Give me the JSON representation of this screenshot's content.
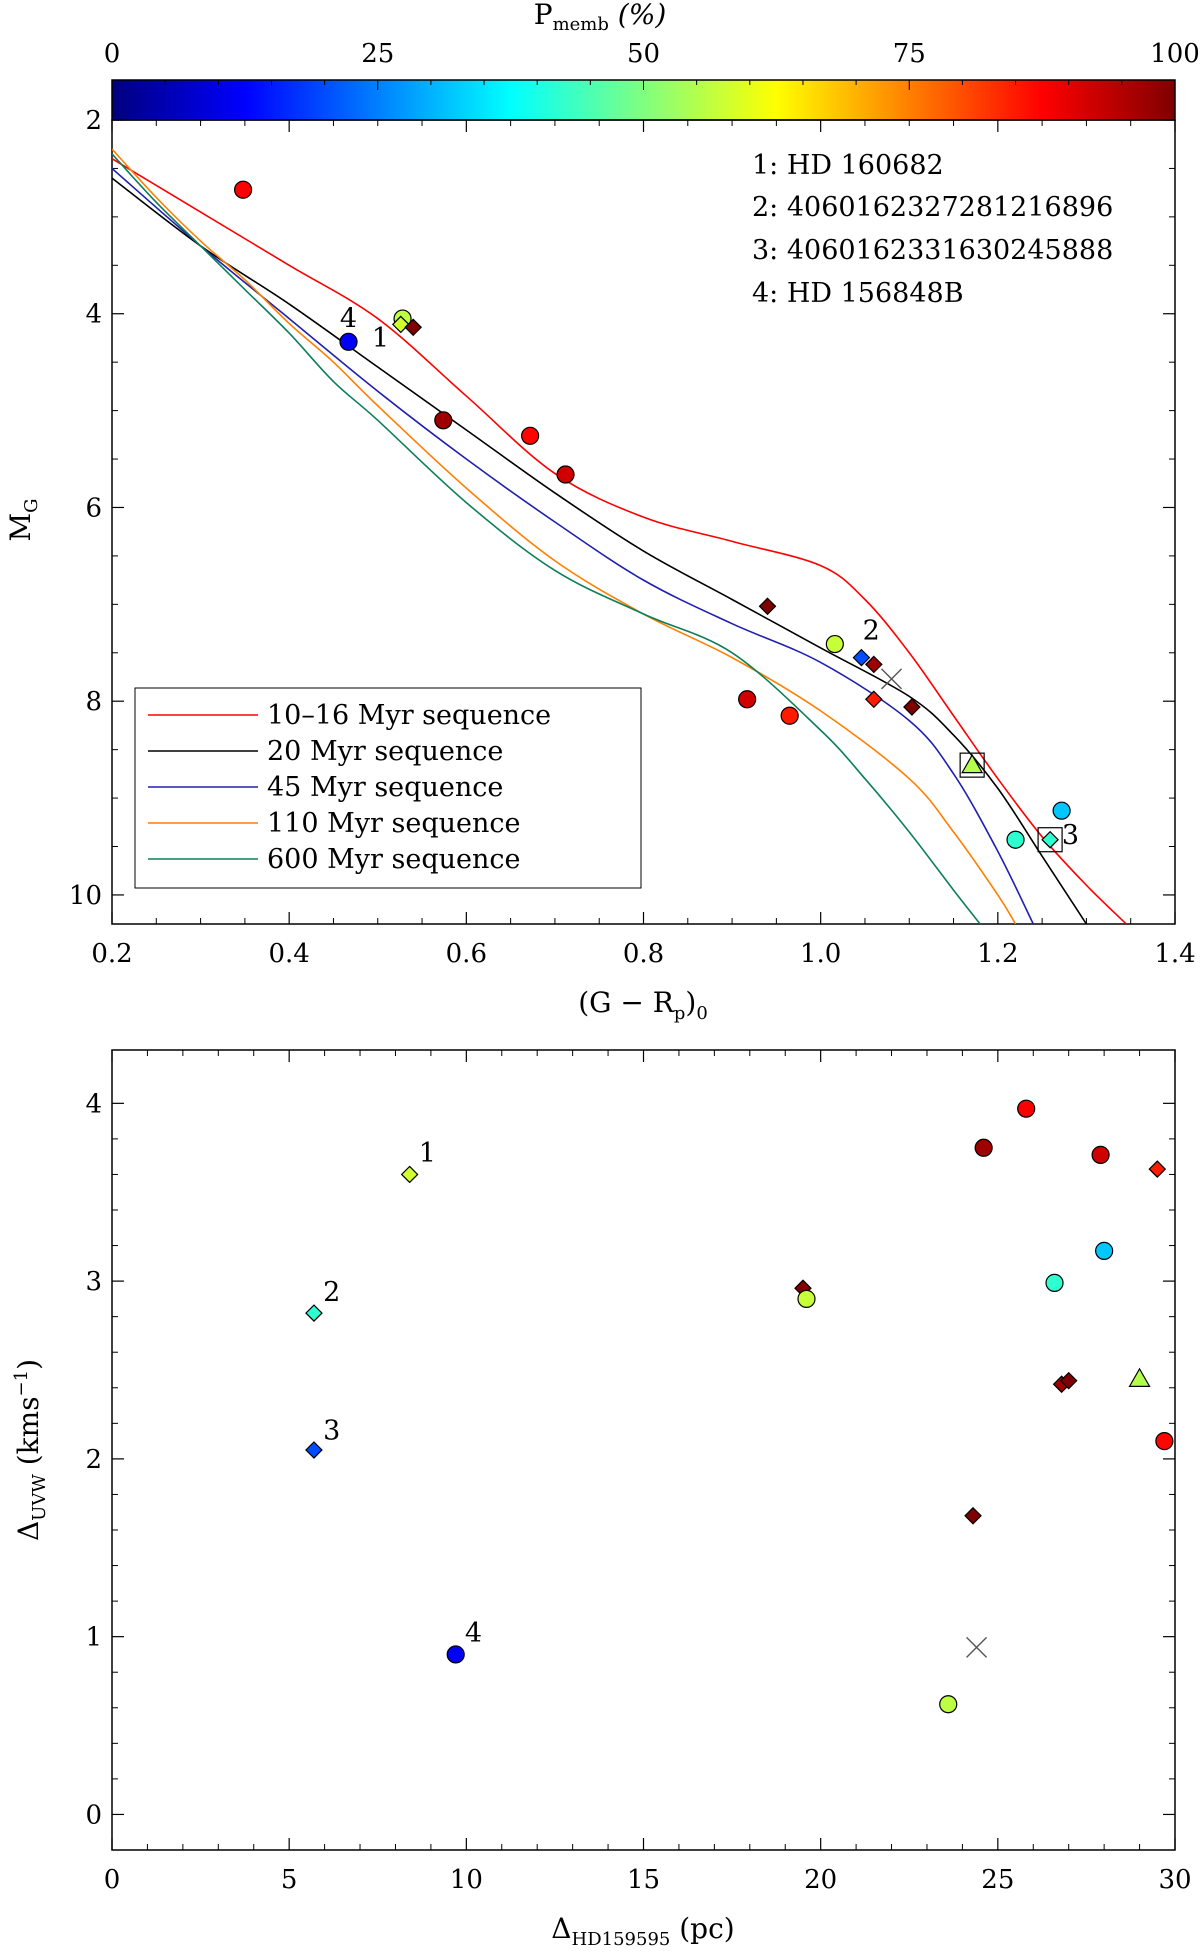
{
  "colorbar": {
    "label": "P",
    "label_sub": "memb",
    "label_unit": " (%)",
    "ticks": [
      "0",
      "25",
      "50",
      "75",
      "100"
    ],
    "range": [
      0,
      100
    ]
  },
  "chart_data": [
    {
      "type": "scatter",
      "name": "color-magnitude diagram",
      "xlabel_main": "(G − R",
      "xlabel_sub1": "p",
      "xlabel_close": ")",
      "xlabel_sub2": "0",
      "ylabel_main": "M",
      "ylabel_sub": "G",
      "xlim": [
        0.2,
        1.4
      ],
      "ylim": [
        10.3,
        2.0
      ],
      "y_inverted": true,
      "xticks": [
        "0.2",
        "0.4",
        "0.6",
        "0.8",
        "1.0",
        "1.2",
        "1.4"
      ],
      "yticks": [
        "2",
        "4",
        "6",
        "8",
        "10"
      ],
      "star_ids": [
        "1: HD 160682",
        "2: 4060162327281216896",
        "3: 4060162331630245888",
        "4: HD 156848B"
      ],
      "legend": {
        "placement": "lower-left",
        "entries": [
          {
            "label": "10–16 Myr sequence",
            "color": "#ff0000"
          },
          {
            "label": "20 Myr sequence",
            "color": "#000000"
          },
          {
            "label": "45 Myr sequence",
            "color": "#2020b0"
          },
          {
            "label": "110 Myr sequence",
            "color": "#ff7f00"
          },
          {
            "label": "600 Myr sequence",
            "color": "#0d7f5a"
          }
        ]
      },
      "sequences": [
        {
          "name": "10–16 Myr sequence",
          "color": "#ff0000",
          "x": [
            0.2,
            0.3,
            0.4,
            0.5,
            0.6,
            0.7,
            0.8,
            0.9,
            1.0,
            1.05,
            1.1,
            1.15,
            1.2,
            1.25,
            1.3,
            1.345
          ],
          "y": [
            2.4,
            2.95,
            3.5,
            4.05,
            4.85,
            5.65,
            6.1,
            6.35,
            6.6,
            6.95,
            7.5,
            8.15,
            8.8,
            9.4,
            9.9,
            10.3
          ]
        },
        {
          "name": "20 Myr sequence",
          "color": "#000000",
          "x": [
            0.2,
            0.3,
            0.4,
            0.5,
            0.6,
            0.7,
            0.8,
            0.9,
            1.0,
            1.1,
            1.15,
            1.2,
            1.25,
            1.3
          ],
          "y": [
            2.6,
            3.3,
            3.9,
            4.55,
            5.2,
            5.85,
            6.45,
            6.95,
            7.45,
            7.95,
            8.35,
            8.9,
            9.6,
            10.3
          ]
        },
        {
          "name": "45 Myr sequence",
          "color": "#2020b0",
          "x": [
            0.2,
            0.3,
            0.4,
            0.5,
            0.6,
            0.7,
            0.8,
            0.9,
            1.0,
            1.1,
            1.15,
            1.2,
            1.24
          ],
          "y": [
            2.5,
            3.3,
            4.05,
            4.8,
            5.5,
            6.15,
            6.75,
            7.2,
            7.6,
            8.2,
            8.75,
            9.55,
            10.3
          ]
        },
        {
          "name": "110 Myr sequence",
          "color": "#ff7f00",
          "x": [
            0.2,
            0.25,
            0.3,
            0.35,
            0.4,
            0.45,
            0.5,
            0.6,
            0.7,
            0.8,
            0.9,
            1.0,
            1.1,
            1.15,
            1.2,
            1.22
          ],
          "y": [
            2.3,
            2.8,
            3.25,
            3.65,
            4.1,
            4.5,
            4.95,
            5.8,
            6.55,
            7.1,
            7.55,
            8.1,
            8.8,
            9.35,
            10.0,
            10.3
          ]
        },
        {
          "name": "600 Myr sequence",
          "color": "#0d7f5a",
          "x": [
            0.2,
            0.25,
            0.3,
            0.35,
            0.4,
            0.45,
            0.5,
            0.6,
            0.7,
            0.8,
            0.9,
            1.0,
            1.05,
            1.1,
            1.15,
            1.18
          ],
          "y": [
            2.35,
            2.85,
            3.3,
            3.75,
            4.2,
            4.7,
            5.1,
            5.95,
            6.65,
            7.1,
            7.5,
            8.3,
            8.8,
            9.35,
            9.95,
            10.3
          ]
        }
      ],
      "points": [
        {
          "x": 0.348,
          "y": 2.72,
          "shape": "circle",
          "p": 88
        },
        {
          "x": 0.528,
          "y": 4.05,
          "shape": "circle",
          "p": 56
        },
        {
          "x": 0.526,
          "y": 4.11,
          "shape": "diamond",
          "p": 58
        },
        {
          "x": 0.54,
          "y": 4.14,
          "shape": "diamond",
          "p": 100
        },
        {
          "x": 0.467,
          "y": 4.29,
          "shape": "circle",
          "p": 12
        },
        {
          "x": 0.574,
          "y": 5.1,
          "shape": "circle",
          "p": 97
        },
        {
          "x": 0.672,
          "y": 5.26,
          "shape": "circle",
          "p": 87
        },
        {
          "x": 0.712,
          "y": 5.66,
          "shape": "circle",
          "p": 92
        },
        {
          "x": 0.94,
          "y": 7.02,
          "shape": "diamond",
          "p": 100
        },
        {
          "x": 1.016,
          "y": 7.41,
          "shape": "circle",
          "p": 57
        },
        {
          "x": 1.046,
          "y": 7.55,
          "shape": "diamond",
          "p": 20
        },
        {
          "x": 1.06,
          "y": 7.62,
          "shape": "diamond",
          "p": 97
        },
        {
          "x": 1.08,
          "y": 7.77,
          "shape": "cross",
          "p": null
        },
        {
          "x": 0.917,
          "y": 7.98,
          "shape": "circle",
          "p": 92
        },
        {
          "x": 0.965,
          "y": 8.15,
          "shape": "circle",
          "p": 85
        },
        {
          "x": 1.06,
          "y": 7.98,
          "shape": "diamond",
          "p": 85
        },
        {
          "x": 1.103,
          "y": 8.06,
          "shape": "diamond",
          "p": 100
        },
        {
          "x": 1.171,
          "y": 8.66,
          "shape": "triangle",
          "p": 55,
          "boxed": true
        },
        {
          "x": 1.272,
          "y": 9.13,
          "shape": "circle",
          "p": 32
        },
        {
          "x": 1.22,
          "y": 9.43,
          "shape": "circle",
          "p": 42
        },
        {
          "x": 1.259,
          "y": 9.43,
          "shape": "diamond",
          "p": 42,
          "boxed": true
        }
      ],
      "labels": [
        {
          "text": "1",
          "x": 0.503,
          "y": 4.25
        },
        {
          "text": "2",
          "x": 1.057,
          "y": 7.27
        },
        {
          "text": "3",
          "x": 1.282,
          "y": 9.38
        },
        {
          "text": "4",
          "x": 0.467,
          "y": 4.05
        }
      ]
    },
    {
      "type": "scatter",
      "name": "velocity vs distance",
      "xlabel_main": "Δ",
      "xlabel_sub": "HD159595",
      "xlabel_unit": " (pc)",
      "ylabel_main": "Δ",
      "ylabel_sub": "UVW",
      "ylabel_unit": " (kms",
      "ylabel_sup": "−1",
      "ylabel_close": ")",
      "xlim": [
        0,
        30
      ],
      "ylim": [
        -0.2,
        4.3
      ],
      "xticks": [
        "0",
        "5",
        "10",
        "15",
        "20",
        "25",
        "30"
      ],
      "yticks": [
        "0",
        "1",
        "2",
        "3",
        "4"
      ],
      "points": [
        {
          "x": 8.4,
          "y": 3.6,
          "shape": "diamond",
          "p": 58
        },
        {
          "x": 5.7,
          "y": 2.82,
          "shape": "diamond",
          "p": 42
        },
        {
          "x": 5.7,
          "y": 2.05,
          "shape": "diamond",
          "p": 20
        },
        {
          "x": 9.7,
          "y": 0.9,
          "shape": "circle",
          "p": 12
        },
        {
          "x": 19.5,
          "y": 2.96,
          "shape": "diamond",
          "p": 100
        },
        {
          "x": 19.6,
          "y": 2.9,
          "shape": "circle",
          "p": 57
        },
        {
          "x": 24.6,
          "y": 3.75,
          "shape": "circle",
          "p": 97
        },
        {
          "x": 25.8,
          "y": 3.97,
          "shape": "circle",
          "p": 88
        },
        {
          "x": 27.9,
          "y": 3.71,
          "shape": "circle",
          "p": 92
        },
        {
          "x": 29.5,
          "y": 3.63,
          "shape": "diamond",
          "p": 85
        },
        {
          "x": 28.0,
          "y": 3.17,
          "shape": "circle",
          "p": 32
        },
        {
          "x": 26.6,
          "y": 2.99,
          "shape": "circle",
          "p": 42
        },
        {
          "x": 26.8,
          "y": 2.42,
          "shape": "diamond",
          "p": 97
        },
        {
          "x": 27.0,
          "y": 2.44,
          "shape": "diamond",
          "p": 100
        },
        {
          "x": 29.0,
          "y": 2.45,
          "shape": "triangle",
          "p": 55
        },
        {
          "x": 29.7,
          "y": 2.1,
          "shape": "circle",
          "p": 87
        },
        {
          "x": 24.3,
          "y": 1.68,
          "shape": "diamond",
          "p": 100
        },
        {
          "x": 24.4,
          "y": 0.94,
          "shape": "cross",
          "p": null
        },
        {
          "x": 23.6,
          "y": 0.62,
          "shape": "circle",
          "p": 56
        }
      ],
      "labels": [
        {
          "text": "1",
          "x": 8.9,
          "y": 3.72
        },
        {
          "text": "2",
          "x": 6.2,
          "y": 2.94
        },
        {
          "text": "3",
          "x": 6.2,
          "y": 2.16
        },
        {
          "text": "4",
          "x": 10.2,
          "y": 1.02
        }
      ]
    }
  ]
}
